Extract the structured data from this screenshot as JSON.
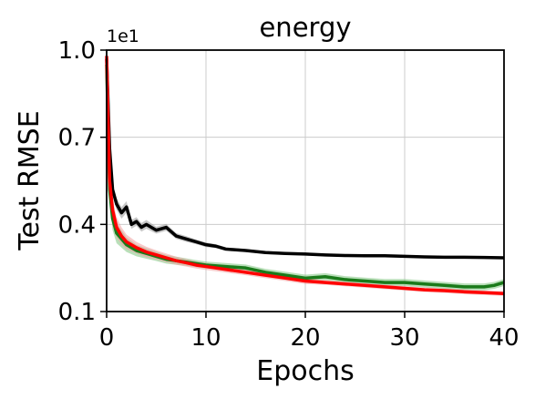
{
  "chart_data": {
    "type": "line",
    "title": "energy",
    "xlabel": "Epochs",
    "ylabel": "Test RMSE",
    "y_scale_note": "1e1",
    "xlim": [
      0,
      40
    ],
    "ylim": [
      0.1,
      1.0
    ],
    "xticks": [
      0,
      10,
      20,
      30,
      40
    ],
    "xtick_labels": [
      "0",
      "10",
      "20",
      "30",
      "40"
    ],
    "yticks": [
      0.1,
      0.4,
      0.7,
      1.0
    ],
    "ytick_labels": [
      "0.1",
      "0.4",
      "0.7",
      "1.0"
    ],
    "grid": true,
    "series": [
      {
        "color": "#000000",
        "band_color": "#9a9a9a",
        "x": [
          0,
          0.3,
          0.6,
          1.0,
          1.5,
          2.0,
          2.5,
          3.0,
          3.5,
          4.0,
          5.0,
          6.0,
          7.0,
          8.0,
          9.0,
          10.0,
          11.0,
          12.0,
          14.0,
          16.0,
          18.0,
          20.0,
          22.0,
          24.0,
          26.0,
          28.0,
          30.0,
          32.0,
          34.0,
          36.0,
          38.0,
          40.0
        ],
        "y": [
          0.97,
          0.66,
          0.52,
          0.47,
          0.44,
          0.46,
          0.4,
          0.41,
          0.39,
          0.4,
          0.38,
          0.39,
          0.36,
          0.35,
          0.34,
          0.33,
          0.325,
          0.315,
          0.31,
          0.303,
          0.3,
          0.298,
          0.295,
          0.293,
          0.292,
          0.292,
          0.29,
          0.288,
          0.287,
          0.287,
          0.286,
          0.285
        ],
        "band": [
          0.01,
          0.02,
          0.02,
          0.02,
          0.02,
          0.02,
          0.015,
          0.015,
          0.015,
          0.015,
          0.012,
          0.012,
          0.01,
          0.01,
          0.008,
          0.008,
          0.007,
          0.006,
          0.005,
          0.005,
          0.005,
          0.005,
          0.004,
          0.004,
          0.004,
          0.004,
          0.004,
          0.004,
          0.004,
          0.004,
          0.004,
          0.004
        ]
      },
      {
        "color": "#1a7a1a",
        "band_color": "#7fc47f",
        "x": [
          0,
          0.3,
          0.6,
          1.0,
          1.5,
          2.0,
          3.0,
          4.0,
          5.0,
          6.0,
          7.0,
          8.0,
          9.0,
          10.0,
          12.0,
          14.0,
          16.0,
          18.0,
          20.0,
          22.0,
          24.0,
          26.0,
          28.0,
          30.0,
          32.0,
          34.0,
          36.0,
          38.0,
          39.0,
          40.0
        ],
        "y": [
          0.95,
          0.52,
          0.42,
          0.37,
          0.35,
          0.33,
          0.31,
          0.3,
          0.29,
          0.28,
          0.275,
          0.27,
          0.265,
          0.26,
          0.255,
          0.25,
          0.235,
          0.225,
          0.215,
          0.22,
          0.21,
          0.205,
          0.2,
          0.2,
          0.195,
          0.19,
          0.185,
          0.185,
          0.19,
          0.2
        ],
        "band": [
          0.02,
          0.04,
          0.04,
          0.035,
          0.03,
          0.025,
          0.02,
          0.018,
          0.016,
          0.015,
          0.014,
          0.013,
          0.012,
          0.012,
          0.012,
          0.012,
          0.012,
          0.012,
          0.012,
          0.012,
          0.012,
          0.012,
          0.012,
          0.012,
          0.012,
          0.012,
          0.012,
          0.012,
          0.012,
          0.012
        ]
      },
      {
        "color": "#ff0000",
        "band_color": "#f0a0a0",
        "x": [
          0,
          0.3,
          0.6,
          1.0,
          1.5,
          2.0,
          3.0,
          4.0,
          5.0,
          6.0,
          7.0,
          8.0,
          9.0,
          10.0,
          12.0,
          14.0,
          16.0,
          18.0,
          20.0,
          22.0,
          24.0,
          26.0,
          28.0,
          30.0,
          32.0,
          34.0,
          36.0,
          38.0,
          40.0
        ],
        "y": [
          0.98,
          0.55,
          0.45,
          0.39,
          0.36,
          0.34,
          0.32,
          0.305,
          0.295,
          0.285,
          0.275,
          0.268,
          0.26,
          0.255,
          0.245,
          0.235,
          0.225,
          0.215,
          0.205,
          0.2,
          0.195,
          0.19,
          0.185,
          0.18,
          0.175,
          0.172,
          0.168,
          0.165,
          0.162
        ],
        "band": [
          0.02,
          0.04,
          0.04,
          0.035,
          0.03,
          0.025,
          0.02,
          0.018,
          0.016,
          0.015,
          0.014,
          0.013,
          0.012,
          0.012,
          0.011,
          0.01,
          0.01,
          0.01,
          0.01,
          0.008,
          0.008,
          0.008,
          0.008,
          0.008,
          0.008,
          0.008,
          0.008,
          0.008,
          0.008
        ]
      }
    ]
  }
}
